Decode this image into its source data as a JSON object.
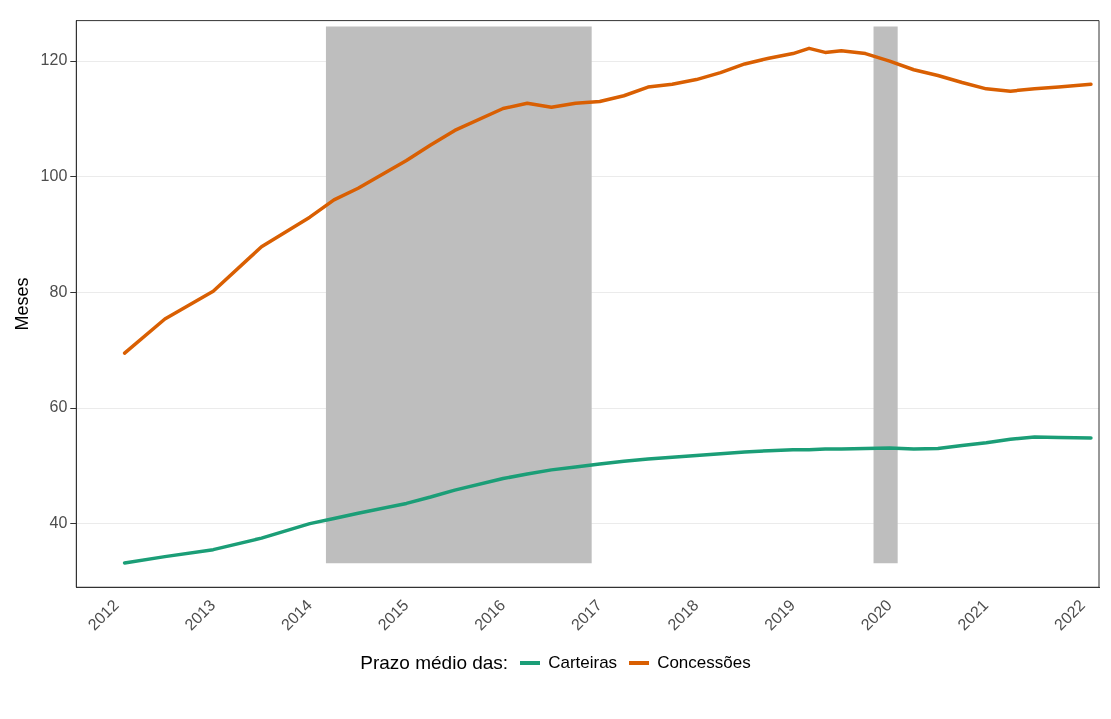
{
  "chart_data": {
    "type": "line",
    "ylabel": "Meses",
    "legend_title": "Prazo médio das:",
    "legend": "bottom",
    "grid": "y",
    "marker": "none",
    "line_style": "solid",
    "x": [
      "2012-02",
      "2012-07",
      "2013-01",
      "2013-07",
      "2014-01",
      "2014-04",
      "2014-07",
      "2015-01",
      "2015-04",
      "2015-07",
      "2016-01",
      "2016-04",
      "2016-07",
      "2016-10",
      "2017-01",
      "2017-04",
      "2017-07",
      "2017-10",
      "2018-01",
      "2018-04",
      "2018-07",
      "2018-10",
      "2019-01",
      "2019-03",
      "2019-05",
      "2019-07",
      "2019-10",
      "2020-01",
      "2020-04",
      "2020-07",
      "2020-10",
      "2021-01",
      "2021-04",
      "2021-07",
      "2021-10",
      "2022-02"
    ],
    "series": [
      {
        "name": "Carteiras",
        "color": "#1b9e77",
        "values": [
          33.2,
          34.3,
          35.5,
          37.5,
          40,
          40.9,
          41.8,
          43.5,
          44.6,
          45.8,
          47.8,
          48.6,
          49.3,
          49.8,
          50.3,
          50.8,
          51.2,
          51.5,
          51.8,
          52.1,
          52.4,
          52.6,
          52.8,
          52.8,
          52.9,
          52.9,
          53,
          53.1,
          52.9,
          53,
          53.5,
          54,
          54.6,
          55,
          54.9,
          54.8
        ]
      },
      {
        "name": "Concessões",
        "color": "#d95f02",
        "values": [
          69.5,
          75.4,
          80.2,
          87.9,
          93,
          96,
          98,
          102.8,
          105.5,
          108,
          111.8,
          112.7,
          112,
          112.7,
          113,
          114,
          115.5,
          116,
          116.8,
          118,
          119.5,
          120.5,
          121.3,
          122.2,
          121.5,
          121.8,
          121.3,
          120,
          118.5,
          117.5,
          116.3,
          115.2,
          114.8,
          115.2,
          115.5,
          116
        ]
      }
    ],
    "xlim": [
      "2011-08",
      "2022-03"
    ],
    "xticks": [
      "2012",
      "2013",
      "2014",
      "2015",
      "2016",
      "2017",
      "2018",
      "2019",
      "2020",
      "2021",
      "2022"
    ],
    "ylim": [
      29,
      127
    ],
    "yticks": [
      40,
      60,
      80,
      100,
      120
    ],
    "bands": [
      {
        "axis": "x",
        "from": "2014-03",
        "to": "2016-12",
        "color": "#bebebe"
      },
      {
        "axis": "x",
        "from": "2019-11",
        "to": "2020-02",
        "color": "#bebebe"
      }
    ]
  }
}
